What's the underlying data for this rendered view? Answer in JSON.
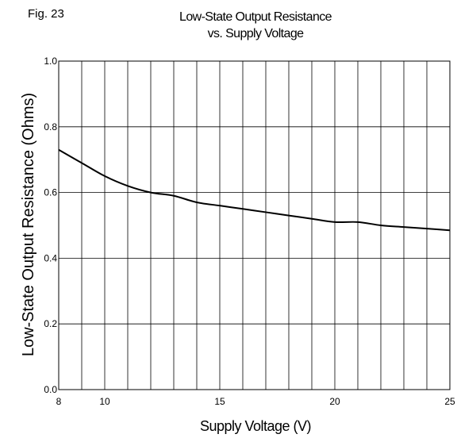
{
  "figure_label": "Fig. 23",
  "chart_data": {
    "type": "line",
    "title": "Low-State Output Resistance",
    "subtitle": "vs. Supply Voltage",
    "xlabel": "Supply Voltage (V)",
    "ylabel": "Low-State Output Resistance (Ohms)",
    "xlim": [
      8,
      25
    ],
    "ylim": [
      0.0,
      1.0
    ],
    "x_ticks": [
      8,
      10,
      15,
      20,
      25
    ],
    "x_tick_labels": [
      "8",
      "10",
      "15",
      "20",
      "25"
    ],
    "y_ticks": [
      0.0,
      0.2,
      0.4,
      0.6,
      0.8,
      1.0
    ],
    "y_tick_labels": [
      "0.0",
      "0.2",
      "0.4",
      "0.6",
      "0.8",
      "1.0"
    ],
    "x_grid_step": 1,
    "y_grid_step": 0.2,
    "grid": true,
    "legend": "none",
    "series": [
      {
        "color": "#000000",
        "x": [
          8,
          9,
          10,
          11,
          12,
          13,
          14,
          15,
          16,
          17,
          18,
          19,
          20,
          21,
          22,
          23,
          24,
          25
        ],
        "y": [
          0.73,
          0.69,
          0.65,
          0.62,
          0.6,
          0.59,
          0.57,
          0.56,
          0.55,
          0.54,
          0.53,
          0.52,
          0.51,
          0.51,
          0.5,
          0.495,
          0.49,
          0.485
        ]
      }
    ]
  }
}
